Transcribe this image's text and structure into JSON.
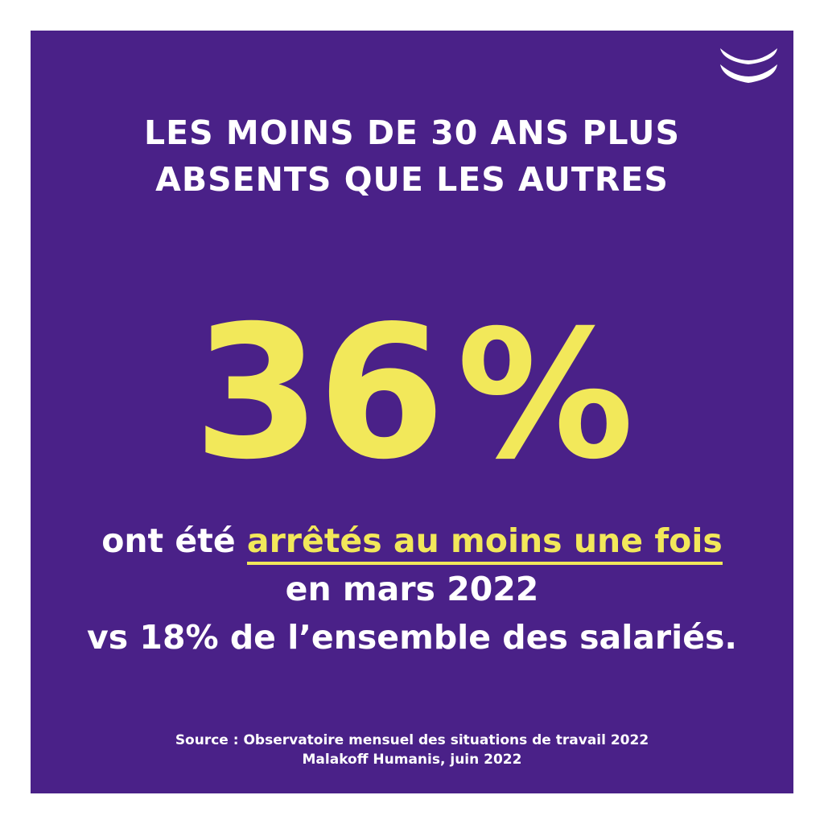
{
  "title": {
    "line1": "LES MOINS DE 30 ANS PLUS",
    "line2": "ABSENTS QUE LES AUTRES"
  },
  "stat": {
    "value": "36",
    "unit": "%"
  },
  "body": {
    "line1_prefix": "ont été ",
    "line1_highlight": "arrêtés au moins une fois",
    "line2": "en mars 2022",
    "line3": "vs 18% de l’ensemble des salariés."
  },
  "source": {
    "line1": "Source : Observatoire mensuel des situations de travail 2022",
    "line2": "Malakoff Humanis, juin 2022"
  },
  "colors": {
    "background": "#4a2188",
    "accent": "#f2e85a",
    "text": "#ffffff"
  },
  "logo": "malakoff-humanis-smile-logo"
}
